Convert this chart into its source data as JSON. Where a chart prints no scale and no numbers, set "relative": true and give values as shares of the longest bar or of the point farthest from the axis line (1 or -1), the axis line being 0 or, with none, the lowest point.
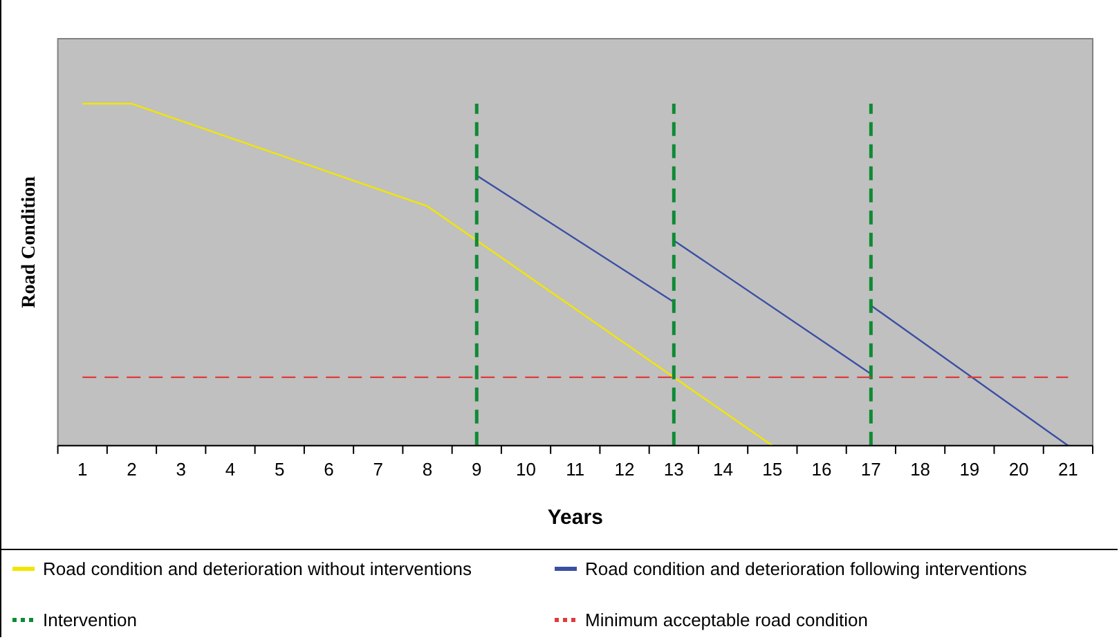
{
  "chart_data": {
    "type": "line",
    "xlabel": "Years",
    "ylabel": "Road Condition",
    "relative": true,
    "xlim": [
      0.5,
      21.5
    ],
    "xticks": [
      1,
      2,
      3,
      4,
      5,
      6,
      7,
      8,
      9,
      10,
      11,
      12,
      13,
      14,
      15,
      16,
      17,
      18,
      19,
      20,
      21
    ],
    "grid": false,
    "legend": "bottom",
    "marker": "none",
    "line_style": "solid",
    "series": [
      {
        "name": "Road condition and deterioration without interventions",
        "color": "#f2e600",
        "x": [
          1,
          2,
          8,
          15
        ],
        "values": [
          1,
          1,
          0.7,
          0
        ]
      },
      {
        "name": "Road condition and deterioration following interventions",
        "color": "#3b4fa3",
        "x": [
          9,
          13,
          null,
          13,
          17,
          null,
          17,
          21
        ],
        "values": [
          0.79,
          0.42,
          null,
          0.6,
          0.21,
          null,
          0.41,
          0
        ]
      }
    ],
    "ref_lines": [
      {
        "axis": "x",
        "value": 9,
        "label": "Intervention",
        "color": "#0f8a35",
        "line_style": "dashed"
      },
      {
        "axis": "x",
        "value": 13,
        "color": "#0f8a35",
        "line_style": "dashed"
      },
      {
        "axis": "x",
        "value": 17,
        "color": "#0f8a35",
        "line_style": "dashed"
      },
      {
        "axis": "y",
        "value": 0.2,
        "label": "Minimum acceptable road condition",
        "color": "#e03a3a",
        "line_style": "dashed"
      }
    ]
  }
}
